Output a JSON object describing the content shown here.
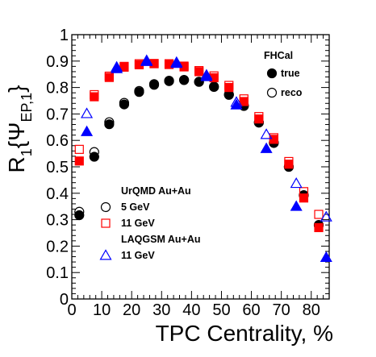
{
  "chart_data": {
    "type": "scatter",
    "xlabel": "TPC Centrality, %",
    "ylabel_main": "R",
    "ylabel_sub": "1",
    "ylabel_psi": "{Ψ",
    "ylabel_psi_sub": "EP,1",
    "ylabel_close": "}",
    "xlim": [
      0,
      86
    ],
    "ylim": [
      0,
      1
    ],
    "x_ticks": [
      "0",
      "10",
      "20",
      "30",
      "40",
      "50",
      "60",
      "70",
      "80"
    ],
    "y_ticks": [
      "0",
      "0.1",
      "0.2",
      "0.3",
      "0.4",
      "0.5",
      "0.6",
      "0.7",
      "0.8",
      "0.9",
      "1"
    ],
    "grid": false,
    "legend_right": {
      "title": "FHCal",
      "entries": [
        {
          "label": "true",
          "marker": "filled-circle"
        },
        {
          "label": "reco",
          "marker": "open-circle"
        }
      ]
    },
    "legend_left": {
      "groups": [
        {
          "title": "UrQMD Au+Au",
          "entries": [
            {
              "label": "5 GeV",
              "marker": "open-circle",
              "color": "#000000"
            },
            {
              "label": "11 GeV",
              "marker": "open-square",
              "color": "#ff0000"
            }
          ]
        },
        {
          "title": "LAQGSM Au+Au",
          "entries": [
            {
              "label": "11 GeV",
              "marker": "open-triangle",
              "color": "#0000ff"
            }
          ]
        }
      ]
    },
    "series": [
      {
        "marker": "filled-circle",
        "color": "#000000",
        "x": [
          2.5,
          7.5,
          12.5,
          17.5,
          22.5,
          27.5,
          32.5,
          37.5,
          42.5,
          47.5,
          52.5,
          57.5,
          62.5,
          67.5,
          72.5,
          77.5,
          82.5
        ],
        "y": [
          0.317,
          0.538,
          0.661,
          0.736,
          0.783,
          0.81,
          0.824,
          0.828,
          0.821,
          0.802,
          0.772,
          0.73,
          0.667,
          0.59,
          0.5,
          0.392,
          0.279
        ]
      },
      {
        "marker": "open-circle",
        "color": "#000000",
        "x": [
          2.5,
          7.5,
          12.5,
          17.5,
          22.5,
          27.5,
          32.5,
          37.5,
          42.5,
          47.5,
          52.5,
          57.5,
          62.5,
          67.5,
          72.5,
          77.5,
          82.5
        ],
        "y": [
          0.33,
          0.556,
          0.669,
          0.742,
          0.787,
          0.813,
          0.826,
          0.829,
          0.822,
          0.804,
          0.774,
          0.733,
          0.669,
          0.592,
          0.5,
          0.393,
          0.28
        ]
      },
      {
        "marker": "filled-square",
        "color": "#ff0000",
        "x": [
          2.5,
          7.5,
          12.5,
          17.5,
          22.5,
          27.5,
          32.5,
          37.5,
          42.5,
          47.5,
          52.5,
          57.5,
          62.5,
          67.5,
          72.5,
          77.5,
          82.5
        ],
        "y": [
          0.522,
          0.765,
          0.838,
          0.877,
          0.886,
          0.89,
          0.887,
          0.878,
          0.86,
          0.837,
          0.8,
          0.747,
          0.681,
          0.604,
          0.51,
          0.382,
          0.27
        ]
      },
      {
        "marker": "open-square",
        "color": "#ff0000",
        "x": [
          2.5,
          7.5,
          12.5,
          17.5,
          22.5,
          27.5,
          32.5,
          37.5,
          42.5,
          47.5,
          52.5,
          57.5,
          62.5,
          67.5,
          72.5,
          77.5,
          82.5
        ],
        "y": [
          0.566,
          0.773,
          0.843,
          0.88,
          0.89,
          0.891,
          0.89,
          0.881,
          0.864,
          0.844,
          0.808,
          0.757,
          0.69,
          0.61,
          0.52,
          0.406,
          0.32
        ]
      },
      {
        "marker": "filled-triangle",
        "color": "#0000ff",
        "x": [
          5,
          15,
          25,
          35,
          45,
          55,
          65,
          75,
          85
        ],
        "y": [
          0.633,
          0.871,
          0.898,
          0.891,
          0.841,
          0.734,
          0.569,
          0.35,
          0.157
        ]
      },
      {
        "marker": "open-triangle",
        "color": "#0000ff",
        "x": [
          5,
          15,
          25,
          35,
          45,
          55,
          65,
          75,
          85
        ],
        "y": [
          0.701,
          0.877,
          0.902,
          0.895,
          0.847,
          0.744,
          0.622,
          0.437,
          0.31
        ]
      }
    ]
  }
}
